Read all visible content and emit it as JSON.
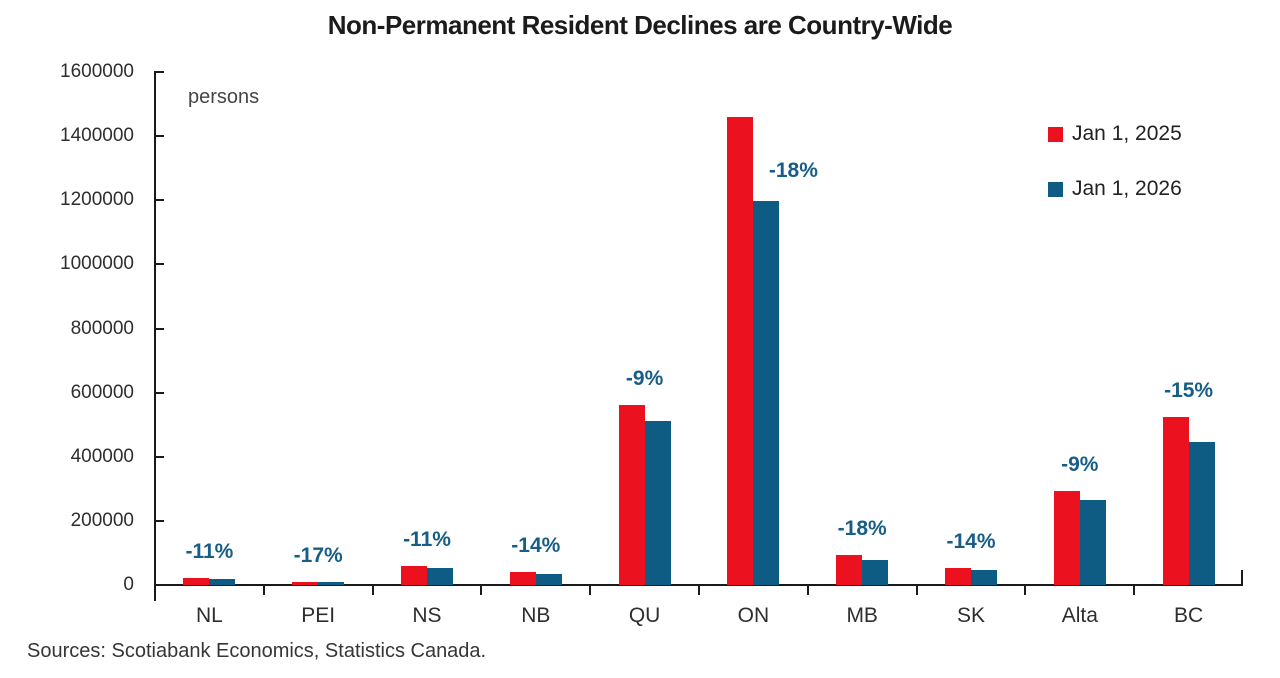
{
  "chart_data": {
    "type": "bar",
    "title": "Non-Permanent Resident Declines are Country-Wide",
    "unit_label": "persons",
    "source_note": "Sources: Scotiabank Economics, Statistics Canada.",
    "categories": [
      "NL",
      "PEI",
      "NS",
      "NB",
      "QU",
      "ON",
      "MB",
      "SK",
      "Alta",
      "BC"
    ],
    "series": [
      {
        "name": "Jan 1, 2025",
        "color": "#EC111E",
        "values": [
          22000,
          10500,
          58000,
          40000,
          562000,
          1460000,
          95000,
          53000,
          292000,
          525000
        ]
      },
      {
        "name": "Jan 1, 2026",
        "color": "#0E5B84",
        "values": [
          19600,
          8700,
          51600,
          34400,
          511000,
          1197000,
          78000,
          45600,
          266000,
          446000
        ]
      }
    ],
    "pct_change_labels": [
      "-11%",
      "-17%",
      "-11%",
      "-14%",
      "-9%",
      "-18%",
      "-18%",
      "-14%",
      "-9%",
      "-15%"
    ],
    "ylim": [
      0,
      1600000
    ],
    "ytick_step": 200000,
    "yticks": [
      0,
      200000,
      400000,
      600000,
      800000,
      1000000,
      1200000,
      1400000,
      1600000
    ],
    "grid": false,
    "legend_position": "top-right",
    "pct_label_color": "#175E87",
    "axis_color": "#1a1a1a"
  }
}
